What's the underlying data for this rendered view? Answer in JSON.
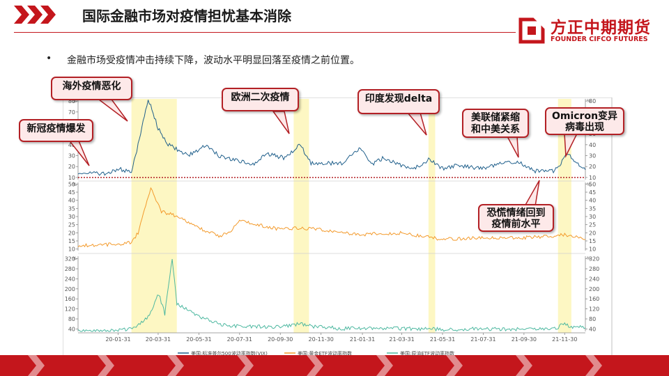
{
  "header": {
    "title": "国际金融市场对疫情担忧基本消除",
    "logo_cn": "方正中期期货",
    "logo_en": "FOUNDER CIFCO FUTURES"
  },
  "bullet": {
    "marker": "•",
    "text": "金融市场受疫情冲击持续下降，波动水平明显回落至疫情之前位置。"
  },
  "callouts": {
    "outbreak": "新冠疫情爆发",
    "overseas": "海外疫情恶化",
    "europe": "欧洲二次疫情",
    "delta": "印度发现delta",
    "fed_line1": "美联储紧缩",
    "fed_line2": "和中美关系",
    "omicron_line1": "Omicron变异",
    "omicron_line2": "病毒出现",
    "panic_line1": "恐慌情绪回到",
    "panic_line2": "疫情前水平"
  },
  "colors": {
    "accent": "#c4161c",
    "vix": "#1f5f8b",
    "gold": "#f39a2b",
    "oil": "#4db8a0",
    "highlight": "#fdf7c3"
  },
  "chart_data": {
    "type": "line",
    "x_start": "2019-12-02",
    "x_ticks": [
      "20-01-31",
      "20-03-31",
      "20-05-31",
      "20-07-31",
      "20-09-30",
      "20-11-30",
      "21-01-31",
      "21-03-31",
      "21-05-31",
      "21-07-31",
      "21-09-30",
      "21-11-30"
    ],
    "highlight_periods": [
      [
        "2020-02-20",
        "2020-04-28"
      ],
      [
        "2020-10-20",
        "2020-11-12"
      ],
      [
        "2021-05-10",
        "2021-05-20"
      ],
      [
        "2021-11-20",
        "2021-12-10"
      ]
    ],
    "reference_line": {
      "panel": 0,
      "value": 10
    },
    "panels": [
      {
        "yticks": [
          10,
          20,
          30,
          40,
          50,
          60,
          70,
          80
        ],
        "ylim": [
          8,
          82
        ],
        "left_unit": "%",
        "right_unit": "%",
        "series": [
          {
            "name": "美国:标准普尔500波动率指数(VIX)",
            "color": "#1f5f8b",
            "points": [
              [
                "2019-12-02",
                15
              ],
              [
                "2020-01-15",
                13
              ],
              [
                "2020-01-31",
                18
              ],
              [
                "2020-02-20",
                15
              ],
              [
                "2020-03-01",
                40
              ],
              [
                "2020-03-16",
                82
              ],
              [
                "2020-03-31",
                55
              ],
              [
                "2020-04-15",
                40
              ],
              [
                "2020-05-15",
                30
              ],
              [
                "2020-06-12",
                40
              ],
              [
                "2020-06-30",
                30
              ],
              [
                "2020-07-31",
                25
              ],
              [
                "2020-08-20",
                22
              ],
              [
                "2020-09-08",
                32
              ],
              [
                "2020-10-05",
                28
              ],
              [
                "2020-10-30",
                40
              ],
              [
                "2020-11-15",
                23
              ],
              [
                "2020-12-31",
                23
              ],
              [
                "2021-01-28",
                37
              ],
              [
                "2021-02-15",
                22
              ],
              [
                "2021-03-04",
                28
              ],
              [
                "2021-04-15",
                17
              ],
              [
                "2021-05-12",
                27
              ],
              [
                "2021-05-31",
                18
              ],
              [
                "2021-06-20",
                21
              ],
              [
                "2021-07-31",
                18
              ],
              [
                "2021-08-19",
                22
              ],
              [
                "2021-09-20",
                25
              ],
              [
                "2021-10-15",
                16
              ],
              [
                "2021-11-15",
                16
              ],
              [
                "2021-11-30",
                28
              ],
              [
                "2021-12-06",
                32
              ],
              [
                "2021-12-20",
                22
              ],
              [
                "2021-12-31",
                17
              ]
            ]
          }
        ]
      },
      {
        "yticks": [
          10,
          15,
          20,
          25,
          30,
          35,
          40,
          45,
          50
        ],
        "ylim": [
          9,
          51
        ],
        "left_unit": "%",
        "right_unit": "%",
        "series": [
          {
            "name": "美国:黄金ETF波动率指数",
            "color": "#f39a2b",
            "points": [
              [
                "2019-12-02",
                12
              ],
              [
                "2020-01-31",
                13
              ],
              [
                "2020-02-20",
                14
              ],
              [
                "2020-03-01",
                20
              ],
              [
                "2020-03-20",
                48
              ],
              [
                "2020-04-05",
                33
              ],
              [
                "2020-04-30",
                30
              ],
              [
                "2020-05-31",
                23
              ],
              [
                "2020-06-30",
                18
              ],
              [
                "2020-07-15",
                20
              ],
              [
                "2020-07-31",
                28
              ],
              [
                "2020-08-15",
                26
              ],
              [
                "2020-09-30",
                22
              ],
              [
                "2020-10-31",
                23
              ],
              [
                "2020-11-30",
                22
              ],
              [
                "2020-12-31",
                20
              ],
              [
                "2021-01-31",
                19
              ],
              [
                "2021-03-31",
                20
              ],
              [
                "2021-05-31",
                16
              ],
              [
                "2021-07-31",
                17
              ],
              [
                "2021-09-30",
                17
              ],
              [
                "2021-11-15",
                18
              ],
              [
                "2021-11-30",
                19
              ],
              [
                "2021-12-31",
                16
              ]
            ]
          }
        ]
      },
      {
        "yticks": [
          40,
          80,
          120,
          160,
          200,
          240,
          280,
          320
        ],
        "ylim": [
          30,
          330
        ],
        "left_unit": "%",
        "right_unit": "%",
        "series": [
          {
            "name": "美国:原油ETF波动率指数",
            "color": "#4db8a0",
            "points": [
              [
                "2019-12-02",
                30
              ],
              [
                "2020-01-31",
                33
              ],
              [
                "2020-02-25",
                45
              ],
              [
                "2020-03-18",
                95
              ],
              [
                "2020-04-01",
                180
              ],
              [
                "2020-04-10",
                100
              ],
              [
                "2020-04-21",
                325
              ],
              [
                "2020-04-28",
                140
              ],
              [
                "2020-05-31",
                90
              ],
              [
                "2020-06-30",
                60
              ],
              [
                "2020-07-31",
                50
              ],
              [
                "2020-09-30",
                48
              ],
              [
                "2020-10-31",
                60
              ],
              [
                "2020-11-15",
                50
              ],
              [
                "2020-12-31",
                42
              ],
              [
                "2021-03-31",
                42
              ],
              [
                "2021-05-31",
                38
              ],
              [
                "2021-07-31",
                40
              ],
              [
                "2021-09-30",
                38
              ],
              [
                "2021-11-15",
                40
              ],
              [
                "2021-11-30",
                62
              ],
              [
                "2021-12-10",
                48
              ],
              [
                "2021-12-31",
                45
              ]
            ]
          }
        ]
      }
    ]
  }
}
